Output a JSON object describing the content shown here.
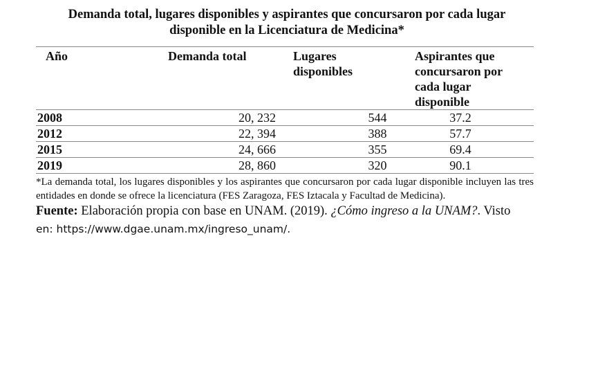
{
  "title": "Demanda total, lugares disponibles y aspirantes que concursaron por cada lugar disponible en la Licenciatura de Medicina*",
  "table": {
    "headers": [
      "Año",
      "Demanda total",
      "Lugares disponibles",
      "Aspirantes que concursaron por cada lugar disponible"
    ],
    "rows": [
      [
        "2008",
        "20, 232",
        "544",
        "37.2"
      ],
      [
        "2012",
        "22, 394",
        "388",
        "57.7"
      ],
      [
        "2015",
        "24, 666",
        "355",
        "69.4"
      ],
      [
        "2019",
        "28, 860",
        "320",
        "90.1"
      ]
    ]
  },
  "footnote": "*La demanda total, los lugares disponibles y los aspirantes que concursaron por cada lugar disponible incluyen las tres entidades en donde se ofrece la licenciatura (FES Zaragoza, FES Iztacala y Facultad de Medicina).",
  "source": {
    "label": "Fuente:",
    "text": " Elaboración propia con base en UNAM. (2019). ",
    "italic_title": "¿Cómo ingreso a la UNAM?",
    "after": ". Visto",
    "url_line": "en: https://www.dgae.unam.mx/ingreso_unam/."
  }
}
